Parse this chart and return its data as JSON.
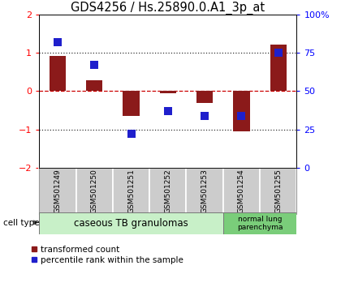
{
  "title": "GDS4256 / Hs.25890.0.A1_3p_at",
  "samples": [
    "GSM501249",
    "GSM501250",
    "GSM501251",
    "GSM501252",
    "GSM501253",
    "GSM501254",
    "GSM501255"
  ],
  "red_bars": [
    0.92,
    0.28,
    -0.65,
    -0.05,
    -0.3,
    -1.05,
    1.22
  ],
  "blue_dots_pct": [
    82,
    67,
    22,
    37,
    34,
    34,
    75
  ],
  "ylim_left": [
    -2,
    2
  ],
  "yticks_left": [
    -2,
    -1,
    0,
    1,
    2
  ],
  "ytick_labels_right": [
    "0",
    "25",
    "50",
    "75",
    "100%"
  ],
  "bar_color": "#8B1A1A",
  "dot_color": "#1F1FCC",
  "zero_line_color": "#CC0000",
  "dotted_line_color": "#333333",
  "group1_label": "caseous TB granulomas",
  "group2_label": "normal lung\nparenchyma",
  "group1_color": "#c8f0c8",
  "group2_color": "#7acd7a",
  "cell_type_label": "cell type",
  "legend_red": "transformed count",
  "legend_blue": "percentile rank within the sample",
  "bar_width": 0.45,
  "dot_size": 55,
  "title_fontsize": 10.5,
  "tick_fontsize": 8,
  "sample_fontsize": 6.5,
  "group_fontsize": 8.5,
  "legend_fontsize": 7.5
}
